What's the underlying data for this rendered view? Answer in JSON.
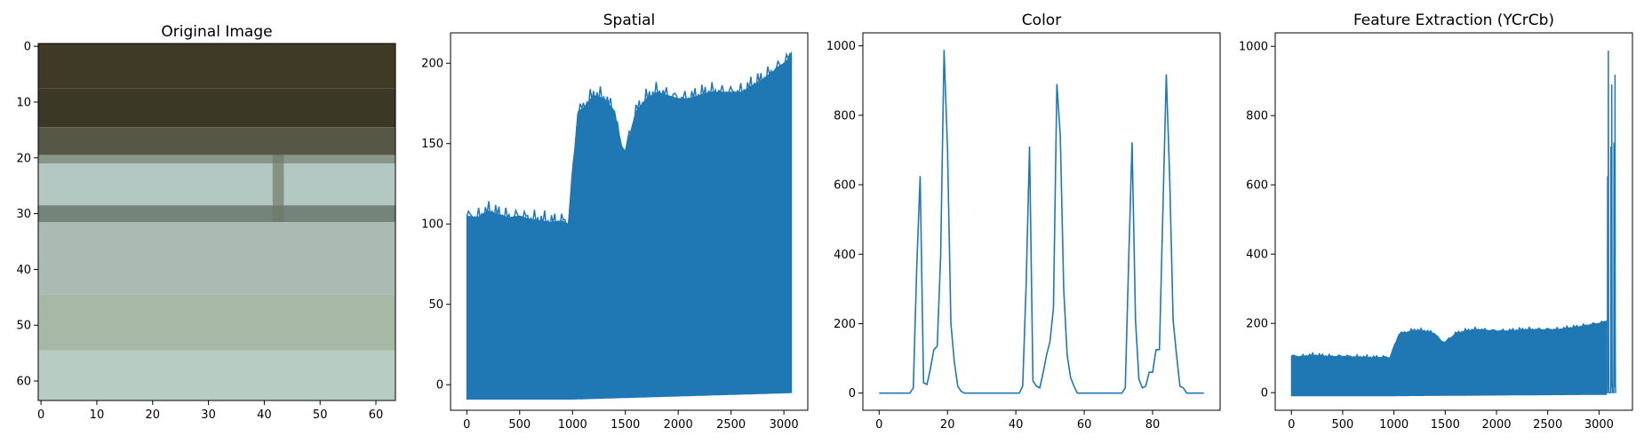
{
  "figure": {
    "series_color": "#1f77b4",
    "background": "#ffffff"
  },
  "chart_data": [
    {
      "type": "image",
      "title": "Original Image",
      "xlabel": "",
      "ylabel": "",
      "xlim": [
        -0.5,
        63.5
      ],
      "ylim": [
        63.5,
        -0.5
      ],
      "xticks": [
        0,
        10,
        20,
        30,
        40,
        50,
        60
      ],
      "yticks": [
        0,
        10,
        20,
        30,
        40,
        50,
        60
      ],
      "image_bands": [
        {
          "rows": [
            0,
            8
          ],
          "color": "#3e3a26"
        },
        {
          "rows": [
            8,
            15
          ],
          "color": "#3b3825"
        },
        {
          "rows": [
            15,
            20
          ],
          "color": "#565845"
        },
        {
          "rows": [
            20,
            21.5
          ],
          "color": "#8a9689"
        },
        {
          "rows": [
            21.5,
            29
          ],
          "color": "#b3c8c2"
        },
        {
          "rows": [
            29,
            32
          ],
          "color": "#74847a"
        },
        {
          "rows": [
            32,
            45
          ],
          "color": "#a9bbb2"
        },
        {
          "rows": [
            45,
            55
          ],
          "color": "#a6b8a6"
        },
        {
          "rows": [
            55,
            64
          ],
          "color": "#b7cdc3"
        }
      ]
    },
    {
      "type": "line",
      "title": "Spatial",
      "xlabel": "",
      "ylabel": "",
      "xlim": [
        -154,
        3226
      ],
      "ylim": [
        -15.9,
        218.9
      ],
      "xticks": [
        0,
        500,
        1000,
        1500,
        2000,
        2500,
        3000
      ],
      "yticks": [
        0,
        50,
        100,
        150,
        200
      ],
      "n_points": 3072,
      "series": [
        {
          "color": "#1f77b4",
          "lower_envelope": {
            "x": [
              0,
              1000,
              3072
            ],
            "y": [
              -9,
              -9,
              -5
            ]
          },
          "upper_envelope": {
            "x": [
              0,
              100,
              200,
              300,
              400,
              500,
              600,
              700,
              800,
              900,
              960,
              1000,
              1050,
              1100,
              1200,
              1300,
              1400,
              1450,
              1500,
              1600,
              1700,
              1800,
              1900,
              2000,
              2100,
              2200,
              2300,
              2400,
              2500,
              2600,
              2700,
              2800,
              2900,
              2950,
              3000,
              3050,
              3072
            ],
            "y": [
              105,
              104,
              108,
              106,
              104,
              105,
              103,
              102,
              101,
              102,
              100,
              130,
              170,
              172,
              180,
              178,
              170,
              150,
              145,
              170,
              178,
              182,
              180,
              178,
              178,
              180,
              182,
              182,
              182,
              182,
              186,
              190,
              195,
              198,
              200,
              203,
              207
            ]
          }
        }
      ]
    },
    {
      "type": "line",
      "title": "Color",
      "xlabel": "",
      "ylabel": "",
      "xlim": [
        -4.75,
        99.75
      ],
      "ylim": [
        -49.4,
        1037.4
      ],
      "xticks": [
        0,
        20,
        40,
        60,
        80
      ],
      "yticks": [
        0,
        200,
        400,
        600,
        800,
        1000
      ],
      "series": [
        {
          "color": "#1f77b4",
          "x": [
            0,
            1,
            2,
            3,
            4,
            5,
            6,
            7,
            8,
            9,
            10,
            11,
            12,
            13,
            14,
            15,
            16,
            17,
            18,
            19,
            20,
            21,
            22,
            23,
            24,
            25,
            26,
            27,
            28,
            29,
            30,
            31,
            32,
            33,
            34,
            35,
            36,
            37,
            38,
            39,
            40,
            41,
            42,
            43,
            44,
            45,
            46,
            47,
            48,
            49,
            50,
            51,
            52,
            53,
            54,
            55,
            56,
            57,
            58,
            59,
            60,
            61,
            62,
            63,
            64,
            65,
            66,
            67,
            68,
            69,
            70,
            71,
            72,
            73,
            74,
            75,
            76,
            77,
            78,
            79,
            80,
            81,
            82,
            83,
            84,
            85,
            86,
            87,
            88,
            89,
            90,
            91,
            92,
            93,
            94,
            95
          ],
          "y": [
            0,
            0,
            0,
            0,
            0,
            0,
            0,
            0,
            0,
            0,
            15,
            360,
            625,
            30,
            25,
            70,
            125,
            135,
            395,
            988,
            705,
            200,
            90,
            20,
            5,
            0,
            0,
            0,
            0,
            0,
            0,
            0,
            0,
            0,
            0,
            0,
            0,
            0,
            0,
            0,
            0,
            0,
            20,
            310,
            710,
            35,
            20,
            15,
            60,
            110,
            150,
            245,
            890,
            740,
            300,
            110,
            45,
            20,
            0,
            0,
            0,
            0,
            0,
            0,
            0,
            0,
            0,
            0,
            0,
            0,
            0,
            0,
            15,
            380,
            722,
            210,
            40,
            15,
            20,
            60,
            60,
            125,
            125,
            520,
            918,
            620,
            210,
            110,
            20,
            15,
            0,
            0,
            0,
            0,
            0,
            0
          ]
        }
      ]
    },
    {
      "type": "line",
      "title": "Feature Extraction (YCrCb)",
      "xlabel": "",
      "ylabel": "",
      "xlim": [
        -158,
        3326
      ],
      "ylim": [
        -50.9,
        1038.9
      ],
      "xticks": [
        0,
        500,
        1000,
        1500,
        2000,
        2500,
        3000
      ],
      "yticks": [
        0,
        200,
        400,
        600,
        800,
        1000
      ],
      "n_points": 3168,
      "series": [
        {
          "color": "#1f77b4",
          "lower_envelope": {
            "x": [
              0,
              1000,
              3168
            ],
            "y": [
              -9,
              -9,
              -5
            ]
          },
          "upper_envelope": {
            "x": [
              0,
              100,
              200,
              300,
              400,
              500,
              600,
              700,
              800,
              900,
              960,
              1000,
              1050,
              1100,
              1200,
              1300,
              1400,
              1450,
              1500,
              1600,
              1700,
              1800,
              1900,
              2000,
              2100,
              2200,
              2300,
              2400,
              2500,
              2600,
              2700,
              2800,
              2900,
              2950,
              3000,
              3050,
              3072
            ],
            "y": [
              105,
              104,
              108,
              106,
              104,
              105,
              103,
              102,
              101,
              102,
              100,
              130,
              170,
              172,
              180,
              178,
              170,
              150,
              145,
              170,
              178,
              182,
              180,
              178,
              178,
              180,
              182,
              182,
              182,
              182,
              186,
              190,
              195,
              198,
              200,
              203,
              207
            ]
          },
          "tail_x": [
            3072,
            3073,
            3074,
            3075,
            3076,
            3077,
            3078,
            3079,
            3080,
            3081,
            3082,
            3083,
            3084,
            3085,
            3086,
            3087,
            3088,
            3089,
            3090,
            3091,
            3092,
            3093,
            3094,
            3095,
            3096,
            3097,
            3098,
            3099,
            3100,
            3101,
            3102,
            3103,
            3104,
            3105,
            3106,
            3107,
            3108,
            3109,
            3110,
            3111,
            3112,
            3113,
            3114,
            3115,
            3116,
            3117,
            3118,
            3119,
            3120,
            3121,
            3122,
            3123,
            3124,
            3125,
            3126,
            3127,
            3128,
            3129,
            3130,
            3131,
            3132,
            3133,
            3134,
            3135,
            3136,
            3137,
            3138,
            3139,
            3140,
            3141,
            3142,
            3143,
            3144,
            3145,
            3146,
            3147,
            3148,
            3149,
            3150,
            3151,
            3152,
            3153,
            3154,
            3155,
            3156,
            3157,
            3158,
            3159,
            3160,
            3161,
            3162,
            3163,
            3164,
            3165,
            3166,
            3167
          ],
          "tail_y": [
            0,
            0,
            0,
            0,
            0,
            0,
            0,
            0,
            0,
            0,
            15,
            360,
            625,
            30,
            25,
            70,
            125,
            135,
            395,
            988,
            705,
            200,
            90,
            20,
            5,
            0,
            0,
            0,
            0,
            0,
            0,
            0,
            0,
            0,
            0,
            0,
            0,
            0,
            0,
            0,
            0,
            0,
            20,
            310,
            710,
            35,
            20,
            15,
            60,
            110,
            150,
            245,
            890,
            740,
            300,
            110,
            45,
            20,
            0,
            0,
            0,
            0,
            0,
            0,
            0,
            0,
            0,
            0,
            0,
            0,
            0,
            0,
            15,
            380,
            722,
            210,
            40,
            15,
            20,
            60,
            60,
            125,
            125,
            520,
            918,
            620,
            210,
            110,
            20,
            15,
            0,
            0,
            0,
            0,
            0,
            0
          ]
        }
      ]
    }
  ]
}
